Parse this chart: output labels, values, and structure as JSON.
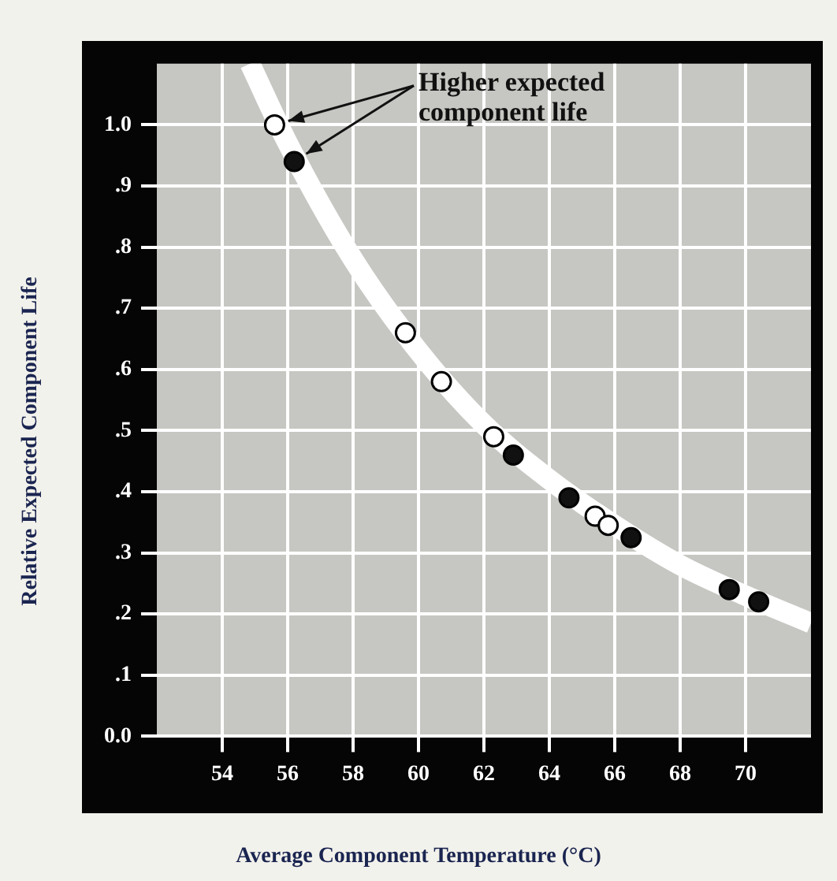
{
  "chart_data": {
    "type": "scatter",
    "xlabel": "Average Component Temperature (°C)",
    "ylabel": "Relative Expected Component Life",
    "annotations": [
      {
        "text": "Higher expected component life",
        "x": 55.6,
        "y": 1.0
      }
    ],
    "xlim": [
      52,
      72
    ],
    "xticks": [
      54,
      56,
      58,
      60,
      62,
      64,
      66,
      68,
      70
    ],
    "ylim": [
      0,
      1.1
    ],
    "yticks": [
      {
        "value": 0,
        "label": "0.0"
      },
      {
        "value": 0.1,
        "label": ".1"
      },
      {
        "value": 0.2,
        "label": ".2"
      },
      {
        "value": 0.3,
        "label": ".3"
      },
      {
        "value": 0.4,
        "label": ".4"
      },
      {
        "value": 0.5,
        "label": ".5"
      },
      {
        "value": 0.6,
        "label": ".6"
      },
      {
        "value": 0.7,
        "label": ".7"
      },
      {
        "value": 0.8,
        "label": ".8"
      },
      {
        "value": 0.9,
        "label": ".9"
      },
      {
        "value": 1.0,
        "label": "1.0"
      }
    ],
    "grid": true,
    "legend": false,
    "marker": "circle",
    "series": [
      {
        "type": "line",
        "marker": "none",
        "color": "#ffffff",
        "x": [
          54.85,
          56,
          58,
          60,
          62,
          64,
          66,
          68,
          70,
          72
        ],
        "values": [
          1.1,
          0.97,
          0.78,
          0.63,
          0.51,
          0.42,
          0.345,
          0.28,
          0.23,
          0.185
        ]
      },
      {
        "color": "#ffffff",
        "x": [
          55.6,
          59.6,
          60.7,
          62.3,
          65.4,
          65.8
        ],
        "values": [
          1.0,
          0.66,
          0.58,
          0.49,
          0.36,
          0.345
        ]
      },
      {
        "color": "#111111",
        "x": [
          56.2,
          62.9,
          64.6,
          66.5,
          69.5,
          70.4
        ],
        "values": [
          0.94,
          0.46,
          0.39,
          0.325,
          0.24,
          0.22
        ]
      }
    ]
  }
}
